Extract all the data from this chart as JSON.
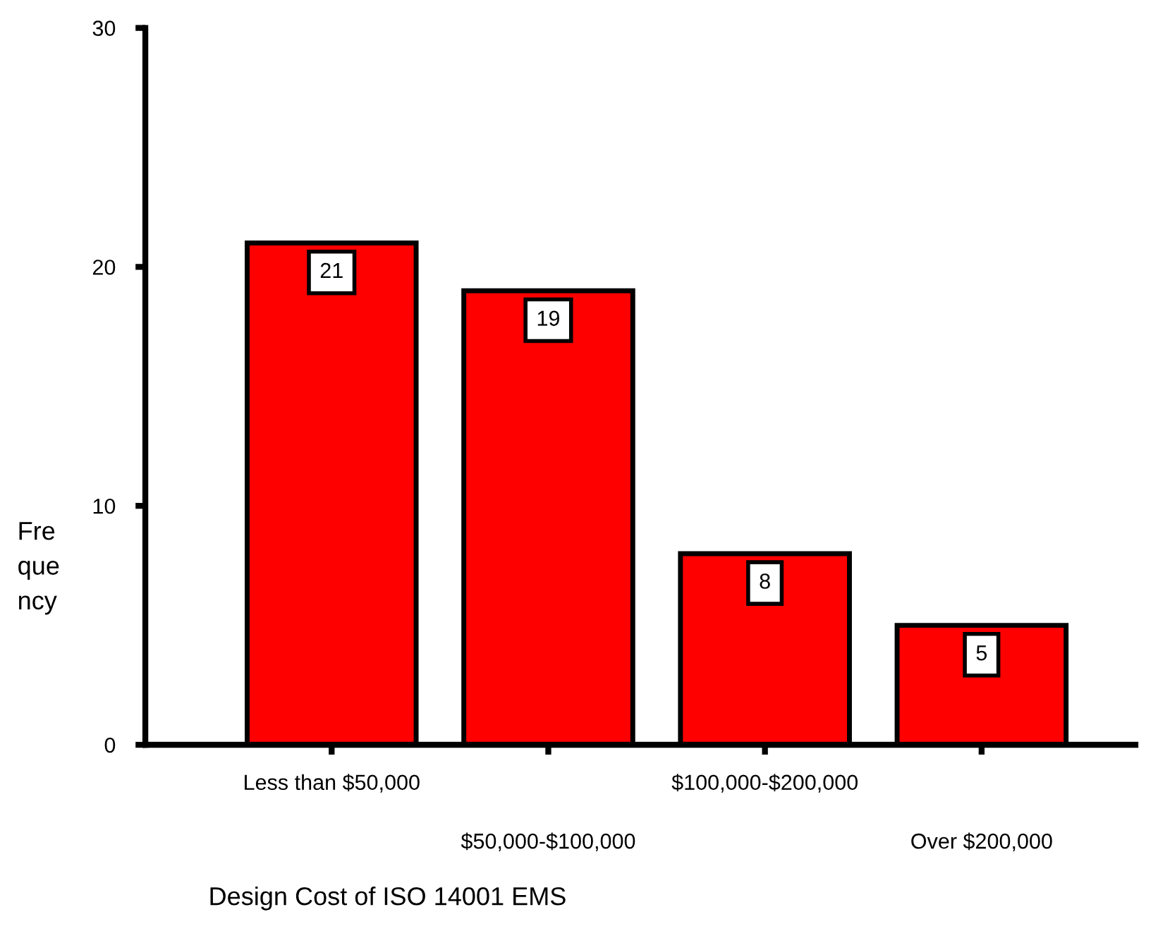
{
  "chart_data": {
    "type": "bar",
    "categories": [
      "Less than $50,000",
      "$50,000-$100,000",
      "$100,000-$200,000",
      "Over $200,000"
    ],
    "values": [
      21,
      19,
      8,
      5
    ],
    "color": "#ff0000",
    "ylim": [
      0,
      30
    ],
    "yticks": [
      0,
      10,
      20,
      30
    ],
    "ylabel": "Frequency",
    "xlabel": "Design Cost of ISO 14001 EMS",
    "data_labels": true,
    "grid": false,
    "legend": false
  }
}
